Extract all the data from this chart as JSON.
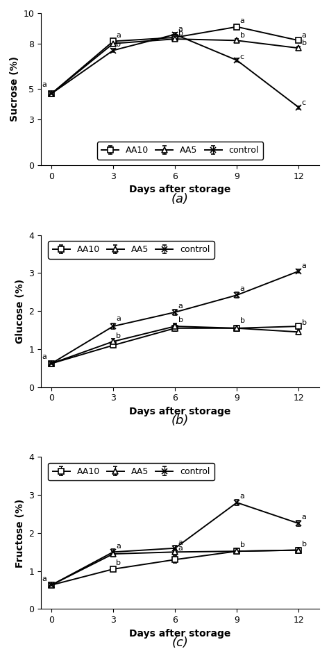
{
  "days": [
    0,
    3,
    6,
    9,
    12
  ],
  "sucrose": {
    "AA10": [
      4.7,
      8.15,
      8.4,
      9.1,
      8.2
    ],
    "AA5": [
      4.7,
      8.0,
      8.3,
      8.2,
      7.7
    ],
    "control": [
      4.7,
      7.55,
      8.6,
      6.9,
      3.8
    ]
  },
  "sucrose_err": {
    "AA10": [
      0.05,
      0.12,
      0.1,
      0.15,
      0.1
    ],
    "AA5": [
      0.05,
      0.1,
      0.1,
      0.1,
      0.12
    ],
    "control": [
      0.05,
      0.12,
      0.1,
      0.12,
      0.1
    ]
  },
  "glucose": {
    "AA10": [
      0.62,
      1.1,
      1.55,
      1.55,
      1.6
    ],
    "AA5": [
      0.62,
      1.2,
      1.6,
      1.55,
      1.45
    ],
    "control": [
      0.62,
      1.6,
      1.97,
      2.42,
      3.05
    ]
  },
  "glucose_err": {
    "AA10": [
      0.03,
      0.07,
      0.08,
      0.07,
      0.07
    ],
    "AA5": [
      0.03,
      0.07,
      0.08,
      0.07,
      0.07
    ],
    "control": [
      0.03,
      0.07,
      0.07,
      0.07,
      0.05
    ]
  },
  "fructose": {
    "AA10": [
      0.63,
      1.05,
      1.3,
      1.52,
      1.55
    ],
    "AA5": [
      0.63,
      1.45,
      1.5,
      1.52,
      1.55
    ],
    "control": [
      0.63,
      1.5,
      1.6,
      2.8,
      2.25
    ]
  },
  "fructose_err": {
    "AA10": [
      0.03,
      0.06,
      0.08,
      0.07,
      0.07
    ],
    "AA5": [
      0.03,
      0.07,
      0.08,
      0.07,
      0.07
    ],
    "control": [
      0.03,
      0.07,
      0.07,
      0.08,
      0.07
    ]
  },
  "line_color": "#000000",
  "label_fontsize": 8,
  "axis_label_fontsize": 10,
  "tick_fontsize": 9,
  "legend_fontsize": 9,
  "panel_label_fontsize": 13
}
